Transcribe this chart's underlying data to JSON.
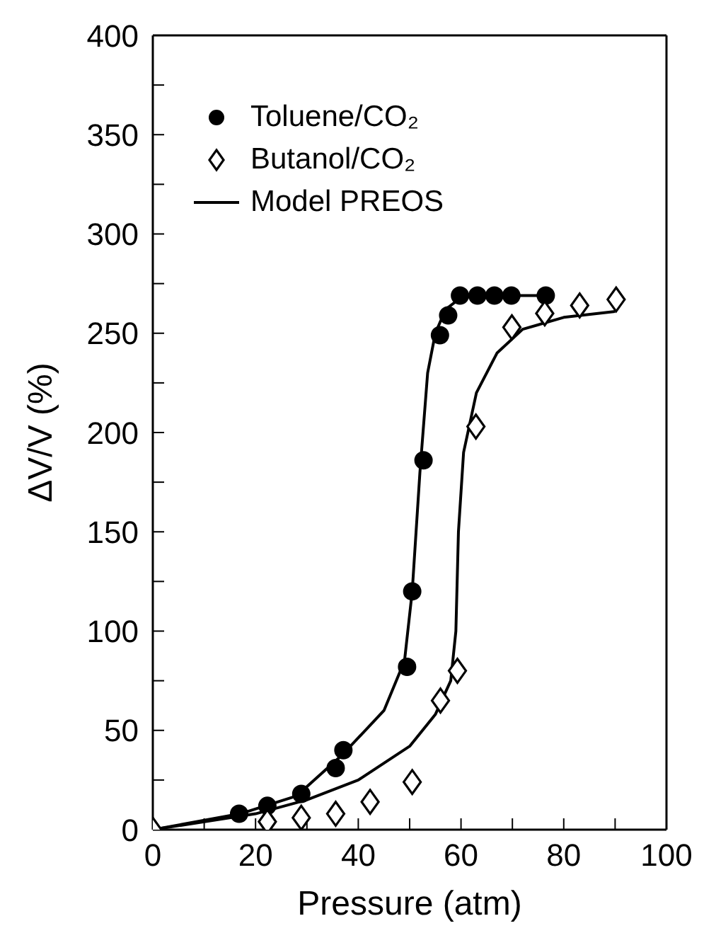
{
  "chart_data": {
    "type": "scatter",
    "xlabel": "Pressure (atm)",
    "ylabel": "ΔV/V (%)",
    "xlim": [
      0,
      100
    ],
    "xticks": [
      0,
      {
        "value": 10,
        "label": null
      },
      20,
      {
        "value": 30,
        "label": null
      },
      40,
      {
        "value": 50,
        "label": null
      },
      60,
      {
        "value": 70,
        "label": null
      },
      80,
      {
        "value": 90,
        "label": null
      },
      100
    ],
    "ylim": [
      0,
      400
    ],
    "yticks": [
      0,
      {
        "value": 25,
        "label": null
      },
      50,
      {
        "value": 75,
        "label": null
      },
      100,
      {
        "value": 125,
        "label": null
      },
      150,
      {
        "value": 175,
        "label": null
      },
      200,
      {
        "value": 225,
        "label": null
      },
      250,
      {
        "value": 275,
        "label": null
      },
      300,
      {
        "value": 325,
        "label": null
      },
      350,
      {
        "value": 375,
        "label": null
      },
      400
    ],
    "legend": "top left",
    "series": [
      {
        "name": "Toluene/CO₂",
        "marker": "circle",
        "color": "#000000",
        "x": [
          16.8,
          22.3,
          28.9,
          35.6,
          37.1,
          49.5,
          50.5,
          52.7,
          55.9,
          57.5,
          59.8,
          63.2,
          66.5,
          69.8,
          76.5
        ],
        "values": [
          8,
          12,
          18,
          31,
          40,
          82,
          120,
          186,
          249,
          259,
          269,
          269,
          269,
          269,
          269
        ]
      },
      {
        "name": "Butanol/CO₂",
        "marker": "diamond",
        "color": "#000000",
        "x": [
          0,
          22.3,
          28.9,
          35.6,
          42.3,
          50.5,
          56,
          59.3,
          62.9,
          69.9,
          76.3,
          83.1,
          90.2
        ],
        "values": [
          0,
          4,
          6,
          8,
          14,
          24,
          65,
          80,
          203,
          253,
          260,
          264,
          267
        ]
      },
      {
        "name": "Model PREOS",
        "type": "line",
        "marker": "none",
        "line_style": "solid",
        "color": "#000000",
        "x": [
          0,
          17,
          28,
          37,
          45,
          49,
          50.5,
          52,
          53.5,
          55,
          57,
          60,
          65,
          76
        ],
        "values": [
          0,
          8,
          17,
          38,
          60,
          85,
          120,
          180,
          230,
          250,
          262,
          268,
          269,
          269
        ]
      },
      {
        "type": "line",
        "marker": "none",
        "line_style": "solid",
        "color": "#000000",
        "x": [
          0,
          20,
          30,
          40,
          50,
          55,
          58,
          59,
          59.5,
          60.5,
          63,
          67,
          72,
          80,
          90
        ],
        "values": [
          0,
          8,
          15,
          25,
          42,
          58,
          75,
          100,
          150,
          190,
          220,
          240,
          252,
          258,
          261
        ]
      }
    ]
  }
}
